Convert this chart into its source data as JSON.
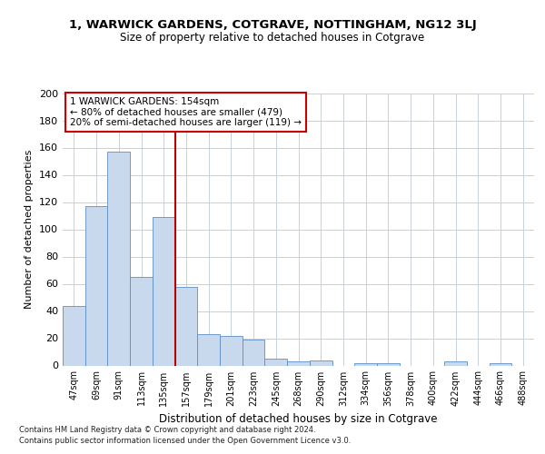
{
  "title": "1, WARWICK GARDENS, COTGRAVE, NOTTINGHAM, NG12 3LJ",
  "subtitle": "Size of property relative to detached houses in Cotgrave",
  "xlabel": "Distribution of detached houses by size in Cotgrave",
  "ylabel": "Number of detached properties",
  "bar_color": "#c8d9ed",
  "bar_edge_color": "#5b8ec4",
  "categories": [
    "47sqm",
    "69sqm",
    "91sqm",
    "113sqm",
    "135sqm",
    "157sqm",
    "179sqm",
    "201sqm",
    "223sqm",
    "245sqm",
    "268sqm",
    "290sqm",
    "312sqm",
    "334sqm",
    "356sqm",
    "378sqm",
    "400sqm",
    "422sqm",
    "444sqm",
    "466sqm",
    "488sqm"
  ],
  "values": [
    44,
    117,
    157,
    65,
    109,
    58,
    23,
    22,
    19,
    5,
    3,
    4,
    0,
    2,
    2,
    0,
    0,
    3,
    0,
    2,
    0
  ],
  "vline_index": 5,
  "vline_color": "#bb0000",
  "annotation_text": "1 WARWICK GARDENS: 154sqm\n← 80% of detached houses are smaller (479)\n20% of semi-detached houses are larger (119) →",
  "annotation_box_color": "#ffffff",
  "annotation_box_edge": "#cc0000",
  "ylim": [
    0,
    200
  ],
  "yticks": [
    0,
    20,
    40,
    60,
    80,
    100,
    120,
    140,
    160,
    180,
    200
  ],
  "footer_line1": "Contains HM Land Registry data © Crown copyright and database right 2024.",
  "footer_line2": "Contains public sector information licensed under the Open Government Licence v3.0.",
  "background_color": "#ffffff",
  "grid_color": "#c8d0dc"
}
